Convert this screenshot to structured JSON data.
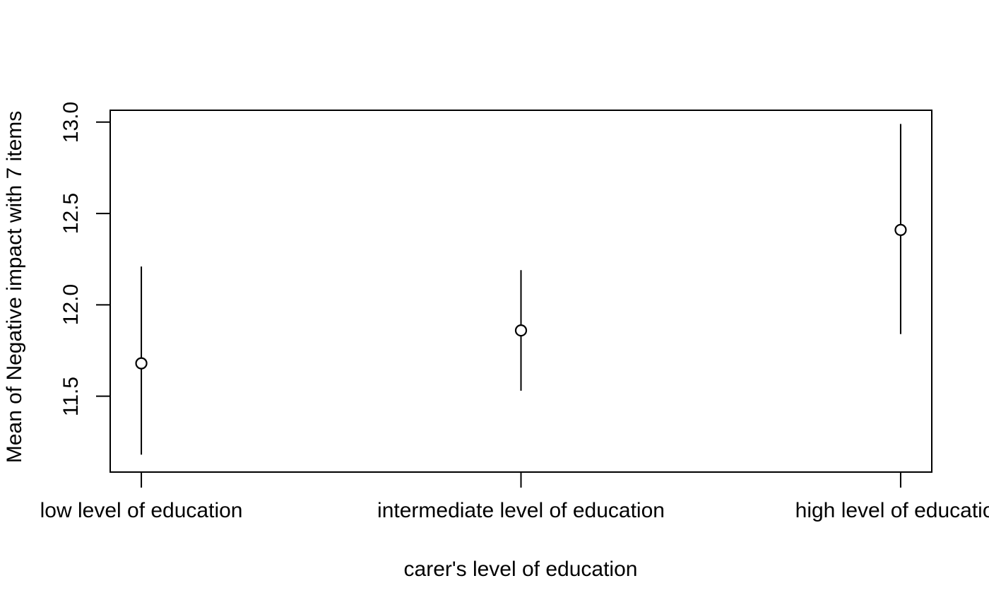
{
  "chart_data": {
    "type": "scatter",
    "subtype": "means-with-error-bars",
    "title": "",
    "xlabel": "carer's level of education",
    "ylabel": "Mean of Negative impact with 7 items",
    "categories": [
      "low level of education",
      "intermediate level of education",
      "high level of education"
    ],
    "x_positions": [
      1,
      2,
      3
    ],
    "series": [
      {
        "name": "mean of negative impact",
        "values": [
          11.68,
          11.86,
          12.41
        ],
        "ci_lower": [
          11.18,
          11.53,
          11.84
        ],
        "ci_upper": [
          12.21,
          12.19,
          12.99
        ]
      }
    ],
    "y_ticks": [
      11.5,
      12.0,
      12.5,
      13.0
    ],
    "y_tick_labels": [
      "11.5",
      "12.0",
      "12.5",
      "13.0"
    ],
    "ylim": [
      11.085,
      13.065
    ],
    "xlim": [
      0.918,
      3.082
    ],
    "grid": false,
    "legend_position": "none",
    "marker": "open-circle",
    "error_bar_caps": false,
    "colors": {
      "foreground": "#000000",
      "background": "#ffffff"
    }
  }
}
